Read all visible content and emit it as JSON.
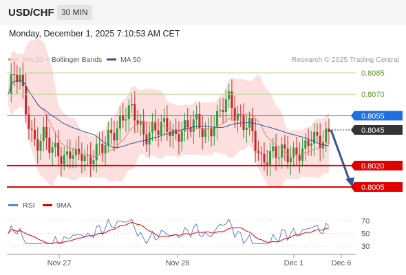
{
  "header": {
    "symbol": "USD/CHF",
    "timeframe": "30 MIN",
    "datetime": "Monday, December 1, 2025 7:10:53 AM CET"
  },
  "legend": {
    "ma20_label": "MA 20 + Bollinger Bands",
    "ma50_label": "MA 50",
    "ma20_color": "#f08080",
    "ma50_color": "#2f5597",
    "credit": "Research © 2025 Trading Central"
  },
  "rsi_legend": {
    "rsi_label": "RSI",
    "ma9_label": "9MA",
    "rsi_color": "#5b7fd6",
    "ma9_color": "#e00000"
  },
  "chart_data": {
    "type": "candlestick",
    "price_levels": [
      {
        "name": "level-8085",
        "value": 0.8085,
        "label": "0.8085",
        "style": "green-text",
        "color": "#8fc46a"
      },
      {
        "name": "level-8070",
        "value": 0.807,
        "label": "0.8070",
        "style": "green-text",
        "color": "#8fc46a"
      },
      {
        "name": "level-8055",
        "value": 0.8055,
        "label": "0.8055",
        "style": "blue-badge",
        "color": "#1f6fe0"
      },
      {
        "name": "level-8045",
        "value": 0.8045,
        "label": "0.8045",
        "style": "dark-badge",
        "color": "#333333"
      },
      {
        "name": "level-8020",
        "value": 0.802,
        "label": "0.8020",
        "style": "red-badge",
        "color": "#e00000"
      },
      {
        "name": "level-8005",
        "value": 0.8005,
        "label": "0.8005",
        "style": "red-badge",
        "color": "#e00000"
      }
    ],
    "x_ticks": [
      "Nov 27",
      "Nov 28",
      "Dec 1",
      "Dec 6"
    ],
    "rsi_ticks": [
      70,
      50,
      30
    ],
    "close_path": [
      0.807,
      0.8082,
      0.8078,
      0.806,
      0.804,
      0.8035,
      0.8038,
      0.803,
      0.8035,
      0.8025,
      0.8028,
      0.8022,
      0.803,
      0.8025,
      0.8032,
      0.8028,
      0.8035,
      0.8045,
      0.8052,
      0.8058,
      0.8055,
      0.805,
      0.8042,
      0.8048,
      0.8045,
      0.8044,
      0.8046,
      0.8042,
      0.8048,
      0.8044,
      0.8047,
      0.805,
      0.8045,
      0.8048,
      0.805,
      0.8062,
      0.8068,
      0.8058,
      0.805,
      0.8045,
      0.8035,
      0.8025,
      0.803,
      0.8028,
      0.8025,
      0.8028,
      0.803,
      0.8032,
      0.8028,
      0.8036,
      0.8038,
      0.8042,
      0.8045
    ],
    "forecast": {
      "from": 0.8045,
      "to": 0.8005
    }
  }
}
